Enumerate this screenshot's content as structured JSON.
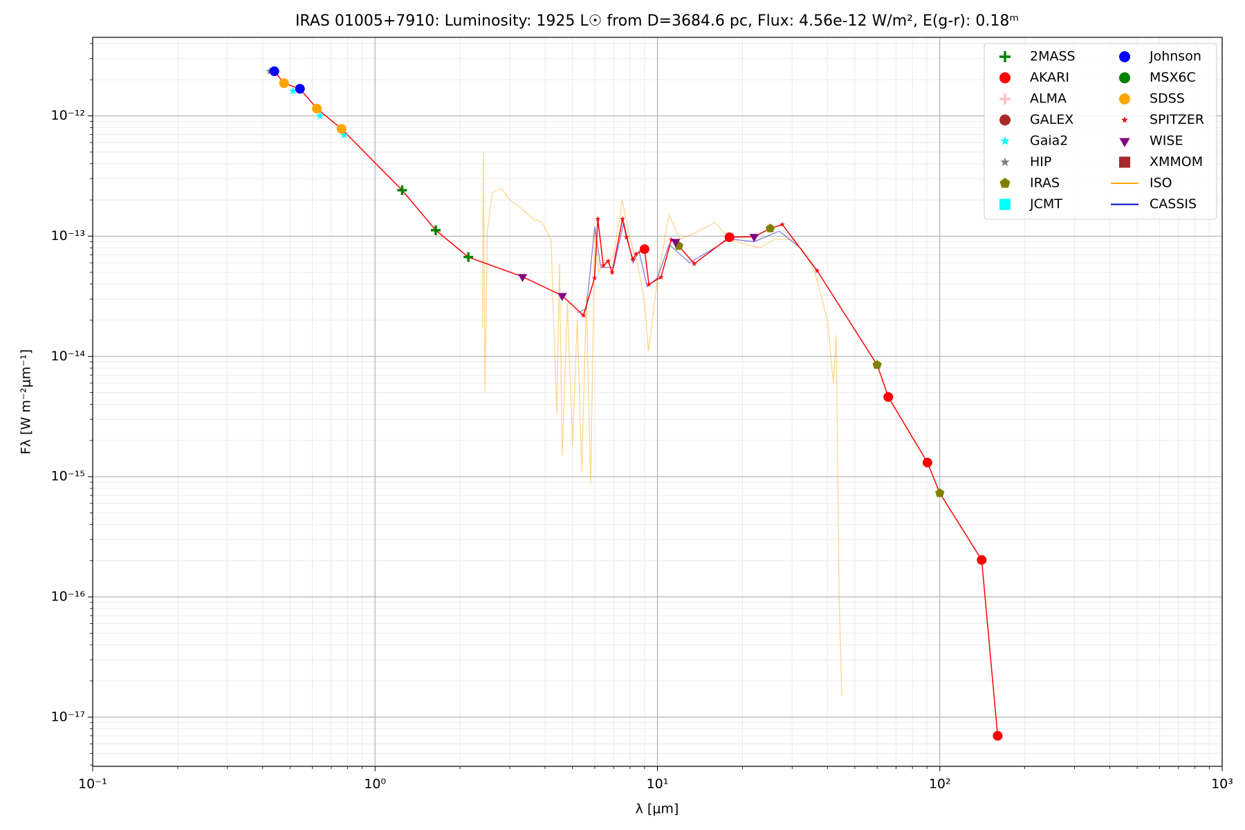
{
  "chart_data": {
    "type": "scatter",
    "title": "IRAS 01005+7910:  Luminosity: 1925 L☉ from D=3684.6 pc, Flux: 4.56e-12 W/m², E(g-r): 0.18ᵐ",
    "x_label": "λ [μm]",
    "y_label": "Fλ [W m⁻²μm⁻¹]",
    "xlog": true,
    "ylog": true,
    "grid": true,
    "minor_grid": true,
    "legend": "upper right",
    "xlim": [
      0.1,
      1000
    ],
    "ylim": [
      3.9e-18,
      4.5e-12
    ],
    "xticks": [
      {
        "value": 0.1,
        "label": "10⁻¹"
      },
      {
        "value": 1,
        "label": "10⁰"
      },
      {
        "value": 10,
        "label": "10¹"
      },
      {
        "value": 100,
        "label": "10²"
      },
      {
        "value": 1000,
        "label": "10³"
      }
    ],
    "yticks": [
      {
        "value": 1e-17,
        "label": "10⁻¹⁷"
      },
      {
        "value": 1e-16,
        "label": "10⁻¹⁶"
      },
      {
        "value": 1e-15,
        "label": "10⁻¹⁵"
      },
      {
        "value": 1e-14,
        "label": "10⁻¹⁴"
      },
      {
        "value": 1e-13,
        "label": "10⁻¹³"
      },
      {
        "value": 1e-12,
        "label": "10⁻¹²"
      }
    ],
    "series": [
      {
        "name": "2MASS",
        "color": "#008000",
        "marker": "plus",
        "x": [
          1.247,
          1.64,
          2.14
        ],
        "values": [
          2.41e-13,
          1.12e-13,
          6.7e-14
        ]
      },
      {
        "name": "AKARI",
        "color": "#ff0000",
        "marker": "circle",
        "x": [
          9.0,
          18.0,
          65.7,
          90.4,
          140.7,
          160.3
        ],
        "values": [
          7.8e-14,
          9.8e-14,
          4.6e-15,
          1.31e-15,
          2.03e-16,
          7e-18
        ]
      },
      {
        "name": "ALMA",
        "color": "#ffc0cb",
        "marker": "plus",
        "x": [],
        "values": []
      },
      {
        "name": "GALEX",
        "color": "#a52a2a",
        "marker": "circle",
        "x": [],
        "values": []
      },
      {
        "name": "Gaia2",
        "color": "#00ffff",
        "marker": "star",
        "x": [
          0.512,
          0.638,
          0.776
        ],
        "values": [
          1.61e-12,
          1e-12,
          6.9e-13
        ]
      },
      {
        "name": "HIP",
        "color": "#808080",
        "marker": "star",
        "x": [
          0.424
        ],
        "values": [
          2.35e-12
        ]
      },
      {
        "name": "IRAS",
        "color": "#808000",
        "marker": "pentagon",
        "x": [
          11.9,
          25.1,
          60.0,
          100
        ],
        "values": [
          8.3e-14,
          1.16e-13,
          8.5e-15,
          7.3e-16
        ]
      },
      {
        "name": "JCMT",
        "color": "#00ffff",
        "marker": "square",
        "x": [],
        "values": []
      },
      {
        "name": "Johnson",
        "color": "#0000ff",
        "marker": "circle",
        "x": [
          0.44,
          0.542
        ],
        "values": [
          2.35e-12,
          1.68e-12
        ]
      },
      {
        "name": "MSX6C",
        "color": "#008000",
        "marker": "circle",
        "x": [],
        "values": []
      },
      {
        "name": "SDSS",
        "color": "#ffa500",
        "marker": "circle",
        "x": [
          0.476,
          0.622,
          0.761
        ],
        "values": [
          1.87e-12,
          1.15e-12,
          7.8e-13
        ]
      },
      {
        "name": "SPITZER",
        "color": "#ff0000",
        "marker": "star",
        "x": [
          5.47,
          5.99,
          6.15,
          6.43,
          6.69,
          6.91,
          7.52,
          7.77,
          8.18,
          8.4,
          9.33,
          10.3,
          11.2,
          13.5,
          27.7,
          36.8
        ],
        "values": [
          2.19e-14,
          4.49e-14,
          1.39e-13,
          5.7e-14,
          6.2e-14,
          5e-14,
          1.39e-13,
          9.8e-14,
          6.4e-14,
          7.1e-14,
          3.97e-14,
          4.56e-14,
          9.35e-14,
          5.9e-14,
          1.25e-13,
          5.15e-14
        ]
      },
      {
        "name": "WISE",
        "color": "#800080",
        "marker": "triangle",
        "x": [
          3.33,
          4.6,
          11.6,
          22.0
        ],
        "values": [
          4.6e-14,
          3.2e-14,
          9e-14,
          9.9e-14
        ]
      },
      {
        "name": "XMMOM",
        "color": "#a52a2a",
        "marker": "square",
        "x": [],
        "values": []
      },
      {
        "name": "ISO",
        "color": "#ffa500",
        "marker": "line",
        "opacity": 0.45,
        "x": [
          2.4,
          2.42,
          2.45,
          2.5,
          2.6,
          2.8,
          3.0,
          3.3,
          3.6,
          3.9,
          4.2,
          4.4,
          4.5,
          4.6,
          4.8,
          5.0,
          5.2,
          5.4,
          5.6,
          5.8,
          6.0,
          6.2,
          6.5,
          7.0,
          7.5,
          8.0,
          8.5,
          9.0,
          9.3,
          10,
          11,
          12,
          14,
          16,
          18,
          20,
          23,
          26,
          30,
          33,
          36,
          38,
          40,
          42,
          43,
          44,
          45
        ],
        "values": [
          1.74e-14,
          5e-13,
          5.1e-15,
          1.1e-13,
          2.3e-13,
          2.5e-13,
          2e-13,
          1.7e-13,
          1.4e-13,
          1.3e-13,
          9.4e-14,
          3.3e-15,
          5.9e-14,
          1.5e-15,
          2.8e-14,
          1.8e-15,
          2e-14,
          1.1e-15,
          3.2e-14,
          8.7e-16,
          1.1e-13,
          5.1e-14,
          5.9e-14,
          6.9e-14,
          2e-13,
          9.4e-14,
          5.9e-14,
          2.8e-14,
          1.1e-14,
          4.4e-14,
          1.5e-13,
          9.4e-14,
          1.1e-13,
          1.3e-13,
          9.4e-14,
          8.7e-14,
          8e-14,
          9.4e-14,
          9.4e-14,
          7.4e-14,
          5.1e-14,
          3.2e-14,
          2e-14,
          6e-15,
          1.5e-14,
          9.6e-17,
          1.5e-17
        ]
      },
      {
        "name": "CASSIS",
        "color": "#0000cd",
        "marker": "line",
        "opacity": 0.5,
        "x": [
          5.2,
          5.6,
          6.0,
          6.3,
          7.0,
          7.6,
          8.2,
          8.6,
          9.2,
          10,
          11,
          13,
          18,
          22,
          27,
          32,
          37
        ],
        "values": [
          2.3e-14,
          2.5e-14,
          1.2e-13,
          5.5e-14,
          5.5e-14,
          1.3e-13,
          6e-14,
          7.5e-14,
          3.8e-14,
          4.5e-14,
          8.5e-14,
          6e-14,
          9.5e-14,
          9e-14,
          1.1e-13,
          8e-14,
          5e-14
        ]
      },
      {
        "color": "#ff0000",
        "marker": "line",
        "x": [
          0.44,
          0.476,
          0.542,
          0.622,
          0.761,
          1.247,
          1.64,
          2.14,
          3.33,
          4.6,
          5.47,
          5.99,
          6.15,
          6.43,
          6.69,
          6.91,
          7.52,
          7.77,
          8.18,
          8.4,
          9.0,
          9.33,
          10.3,
          11.2,
          11.9,
          13.5,
          18.0,
          22.0,
          25.1,
          27.7,
          36.8,
          60,
          65.7,
          90.4,
          100,
          140.7,
          160.3
        ],
        "values": [
          2.35e-12,
          1.87e-12,
          1.68e-12,
          1.15e-12,
          7.8e-13,
          2.41e-13,
          1.12e-13,
          6.7e-14,
          4.6e-14,
          3.2e-14,
          2.19e-14,
          4.49e-14,
          1.39e-13,
          5.7e-14,
          6.2e-14,
          5e-14,
          1.39e-13,
          9.8e-14,
          6.4e-14,
          7.1e-14,
          7.8e-14,
          3.97e-14,
          4.56e-14,
          9.35e-14,
          8.3e-14,
          5.9e-14,
          9.8e-14,
          9.9e-14,
          1.16e-13,
          1.25e-13,
          5.15e-14,
          8.5e-15,
          4.6e-15,
          1.31e-15,
          7.3e-16,
          2.03e-16,
          7e-18
        ]
      }
    ]
  }
}
